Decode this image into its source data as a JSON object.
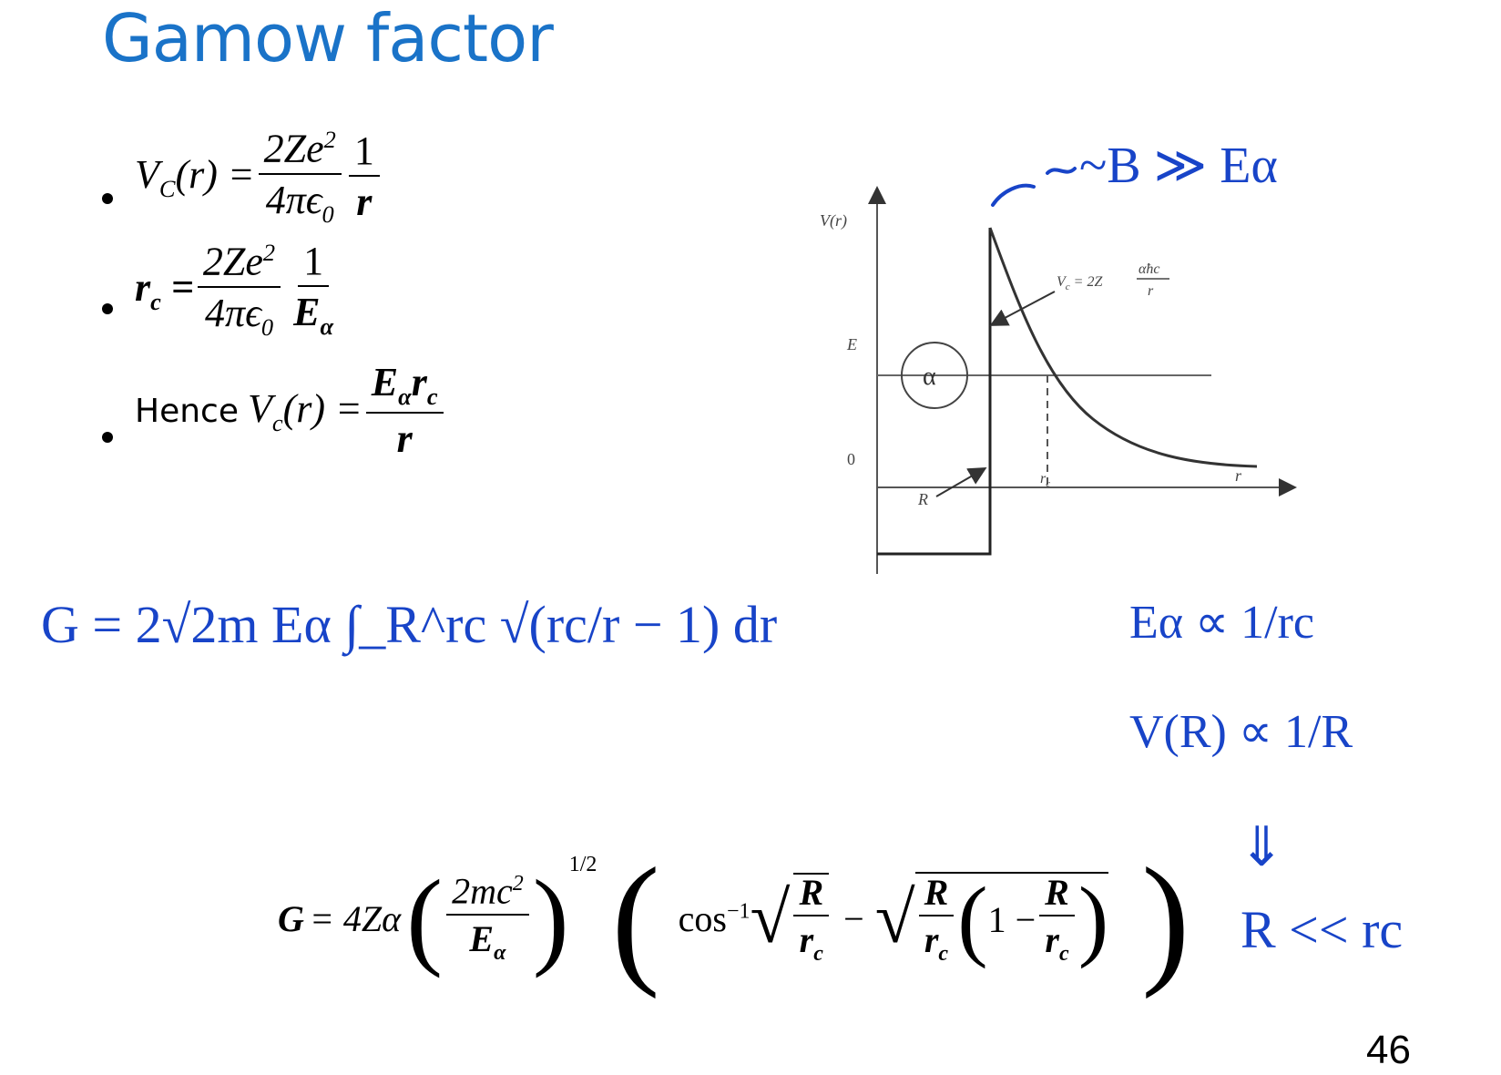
{
  "title": "Gamow factor",
  "bullets": [
    {
      "lhs": "V",
      "lhs_sub": "C",
      "lhs_arg": "(r) =",
      "num": "2Ze",
      "num_sup": "2",
      "den": "4πϵ",
      "den_sub": "0",
      "factor_num": "1",
      "factor_den": "r"
    },
    {
      "lhs": "r",
      "lhs_sub": "c",
      "lhs_arg": " =",
      "num": "2Ze",
      "num_sup": "2",
      "den": "4πϵ",
      "den_sub": "0",
      "factor_num": "1",
      "factor_den": "E",
      "factor_den_sub": "α"
    },
    {
      "prefix": "Hence",
      "lhs": "V",
      "lhs_sub": "c",
      "lhs_arg": "(r) =",
      "num": "E",
      "num_sub": "α",
      "num_tail": "r",
      "num_tail_sub": "c",
      "den": "r"
    }
  ],
  "diagram": {
    "y_axis_label": "V(r)",
    "e_label": "E",
    "zero_label": "0",
    "alpha_label": "α",
    "vc_label_prefix": "V",
    "vc_label_sub": "c",
    "vc_label_eq": "= 2Z",
    "vc_label_num": "αħc",
    "vc_label_den": "r",
    "rc_label": "r",
    "rc_label_sub": "c",
    "r_label": "r",
    "R_label": "R"
  },
  "handwriting": {
    "color": "#1844c8",
    "top_note": "~B ≫ Eα",
    "gamow_integral": "G = 2√2m Eα ∫_R^rc √(rc/r − 1) dr",
    "prop1": "Eα ∝ 1/rc",
    "prop2": "V(R) ∝ 1/R",
    "implies": "⇓",
    "conclusion": "R << rc"
  },
  "final_formula": {
    "lhs": "G",
    "coef": "= 4Zα",
    "inner_num": "2mc",
    "inner_num_sup": "2",
    "inner_den": "E",
    "inner_den_sub": "α",
    "power": "1/2",
    "cos": "cos",
    "cos_sup": "−1",
    "minus": "−",
    "one_minus": "1 −",
    "R": "R",
    "rc": "r",
    "rc_sub": "c"
  },
  "page_number": "46"
}
